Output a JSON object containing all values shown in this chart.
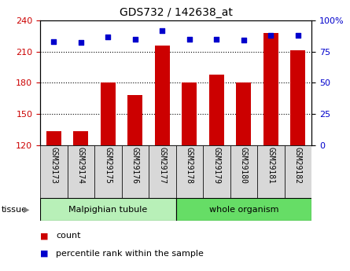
{
  "title": "GDS732 / 142638_at",
  "samples": [
    "GSM29173",
    "GSM29174",
    "GSM29175",
    "GSM29176",
    "GSM29177",
    "GSM29178",
    "GSM29179",
    "GSM29180",
    "GSM29181",
    "GSM29182"
  ],
  "counts": [
    133,
    133,
    180,
    168,
    216,
    180,
    188,
    180,
    228,
    211
  ],
  "percentiles": [
    83,
    82,
    87,
    85,
    92,
    85,
    85,
    84,
    88,
    88
  ],
  "ylim_left": [
    120,
    240
  ],
  "ylim_right": [
    0,
    100
  ],
  "yticks_left": [
    120,
    150,
    180,
    210,
    240
  ],
  "yticks_right": [
    0,
    25,
    50,
    75,
    100
  ],
  "groups": [
    {
      "label": "Malpighian tubule",
      "start": 0,
      "end": 5,
      "color": "#b8f0b8"
    },
    {
      "label": "whole organism",
      "start": 5,
      "end": 10,
      "color": "#66dd66"
    }
  ],
  "tissue_label": "tissue",
  "bar_color": "#cc0000",
  "dot_color": "#0000cc",
  "bar_width": 0.55,
  "legend_items": [
    {
      "label": "count",
      "color": "#cc0000"
    },
    {
      "label": "percentile rank within the sample",
      "color": "#0000cc"
    }
  ],
  "tick_bg_color": "#d8d8d8",
  "tick_label_fontsize": 7
}
